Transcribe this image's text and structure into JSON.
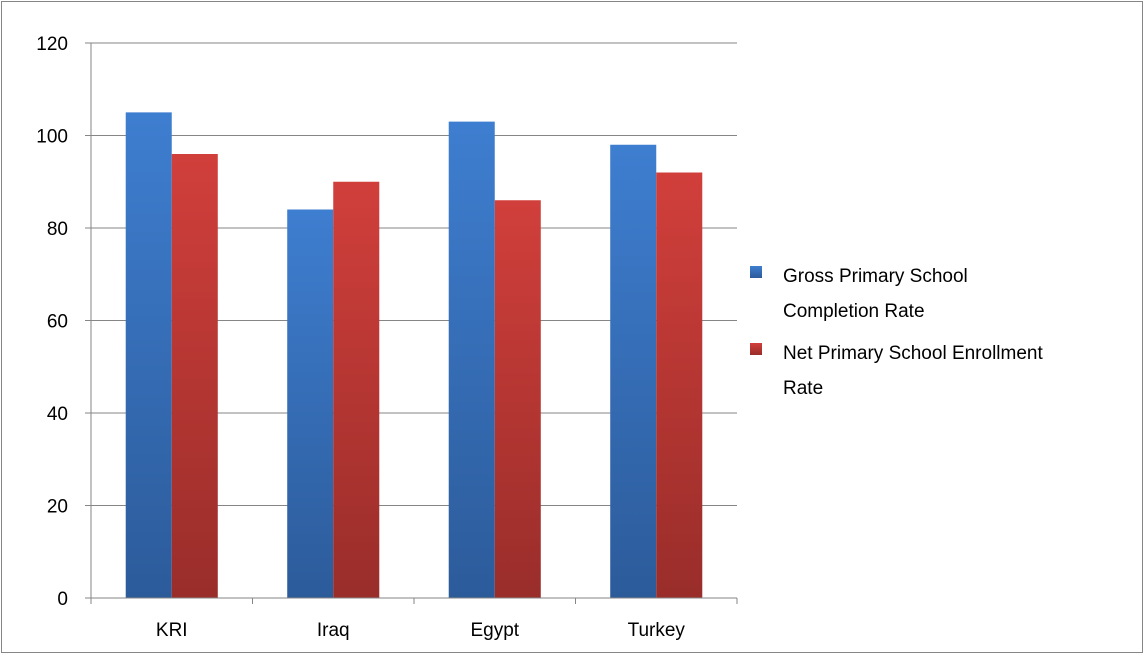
{
  "chart_data": {
    "type": "bar",
    "title": "",
    "xlabel": "",
    "ylabel": "",
    "categories": [
      "KRI",
      "Iraq",
      "Egypt",
      "Turkey"
    ],
    "series": [
      {
        "name": "Gross Primary School Completion Rate",
        "values": [
          105,
          84,
          103,
          98
        ],
        "color": "#4F81BD"
      },
      {
        "name": "Net Primary School Enrollment Rate",
        "values": [
          96,
          90,
          86,
          92
        ],
        "color": "#C0504D"
      }
    ],
    "ylim": [
      0,
      120
    ],
    "yticks": [
      "0",
      "20",
      "40",
      "60",
      "80",
      "100",
      "120"
    ],
    "grid": true,
    "legend_position": "right",
    "legend_lines": [
      [
        "Gross Primary School",
        "Completion Rate"
      ],
      [
        "Net Primary School Enrollment",
        "Rate"
      ]
    ]
  }
}
